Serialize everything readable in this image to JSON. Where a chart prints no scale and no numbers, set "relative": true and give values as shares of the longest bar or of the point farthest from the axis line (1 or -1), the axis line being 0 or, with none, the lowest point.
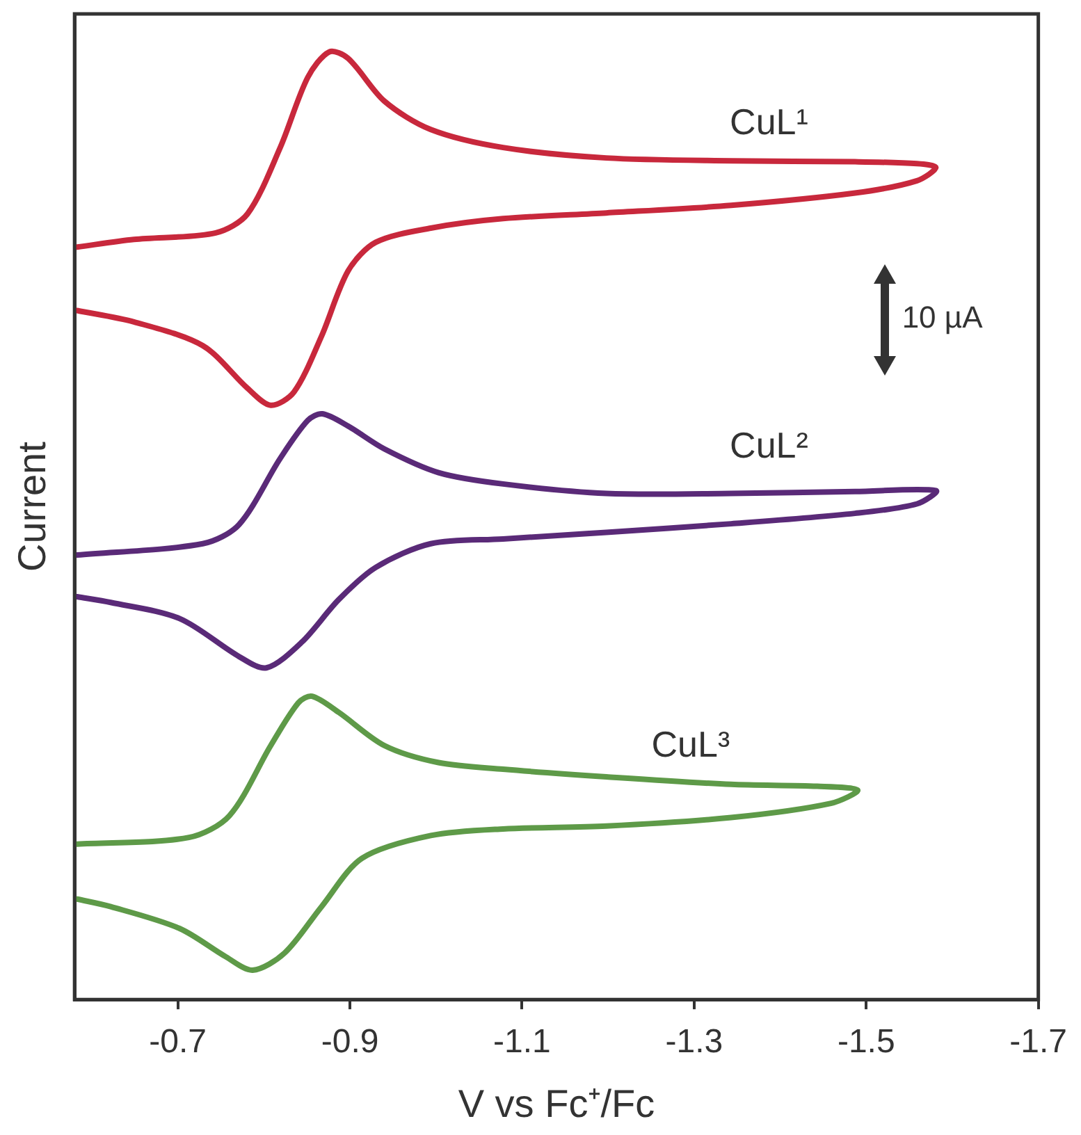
{
  "chart_data": {
    "type": "line",
    "relative": true,
    "xlabel": "V vs Fc⁺/Fc",
    "ylabel": "Current",
    "xlim": [
      -0.58,
      -1.7
    ],
    "xticks": [
      {
        "value": -0.7,
        "label": "-0.7"
      },
      {
        "value": -0.9,
        "label": "-0.9"
      },
      {
        "value": -1.1,
        "label": "-1.1"
      },
      {
        "value": -1.3,
        "label": "-1.3"
      },
      {
        "value": -1.5,
        "label": "-1.5"
      },
      {
        "value": -1.7,
        "label": "-1.7"
      }
    ],
    "marker": "none",
    "line_style": "solid",
    "annotations": [
      "10 µA"
    ],
    "series": [
      {
        "name": "CuL¹",
        "color": "#c8283c",
        "x": [
          -0.583,
          -0.649,
          -0.744,
          -0.781,
          -0.819,
          -0.851,
          -0.876,
          -0.898,
          -0.94,
          -0.994,
          -1.078,
          -1.198,
          -1.343,
          -1.487,
          -1.559,
          -1.581,
          -1.559,
          -1.487,
          -1.343,
          -1.198,
          -1.078,
          -0.994,
          -0.93,
          -0.898,
          -0.867,
          -0.835,
          -0.808,
          -0.781,
          -0.729,
          -0.649,
          -0.583
        ],
        "values": [
          0.794,
          0.802,
          0.809,
          0.829,
          0.899,
          0.973,
          1.0,
          0.993,
          0.948,
          0.918,
          0.899,
          0.888,
          0.885,
          0.884,
          0.882,
          0.878,
          0.864,
          0.851,
          0.838,
          0.83,
          0.824,
          0.814,
          0.799,
          0.769,
          0.7,
          0.641,
          0.627,
          0.645,
          0.69,
          0.715,
          0.727
        ]
      },
      {
        "name": "CuL²",
        "color": "#5a2a78",
        "x": [
          -0.583,
          -0.729,
          -0.771,
          -0.819,
          -0.851,
          -0.868,
          -0.898,
          -0.94,
          -1.003,
          -1.078,
          -1.198,
          -1.343,
          -1.487,
          -1.581,
          -1.559,
          -1.487,
          -1.343,
          -1.198,
          -1.078,
          -0.994,
          -0.93,
          -0.887,
          -0.844,
          -0.803,
          -0.771,
          -0.702,
          -0.622,
          -0.583
        ],
        "values": [
          0.469,
          0.481,
          0.501,
          0.571,
          0.611,
          0.618,
          0.605,
          0.581,
          0.556,
          0.544,
          0.534,
          0.534,
          0.536,
          0.537,
          0.523,
          0.513,
          0.502,
          0.493,
          0.486,
          0.481,
          0.456,
          0.422,
          0.377,
          0.35,
          0.362,
          0.402,
          0.419,
          0.425
        ]
      },
      {
        "name": "CuL³",
        "color": "#5e9a48",
        "x": [
          -0.583,
          -0.713,
          -0.76,
          -0.808,
          -0.84,
          -0.856,
          -0.887,
          -0.94,
          -1.003,
          -1.078,
          -1.198,
          -1.343,
          -1.443,
          -1.49,
          -1.459,
          -1.343,
          -1.198,
          -1.078,
          -0.994,
          -0.914,
          -0.867,
          -0.824,
          -0.787,
          -0.756,
          -0.702,
          -0.622,
          -0.583
        ],
        "values": [
          0.164,
          0.171,
          0.194,
          0.268,
          0.313,
          0.32,
          0.303,
          0.268,
          0.25,
          0.243,
          0.235,
          0.227,
          0.225,
          0.221,
          0.207,
          0.192,
          0.183,
          0.18,
          0.173,
          0.149,
          0.098,
          0.049,
          0.031,
          0.045,
          0.075,
          0.098,
          0.106
        ]
      }
    ]
  }
}
